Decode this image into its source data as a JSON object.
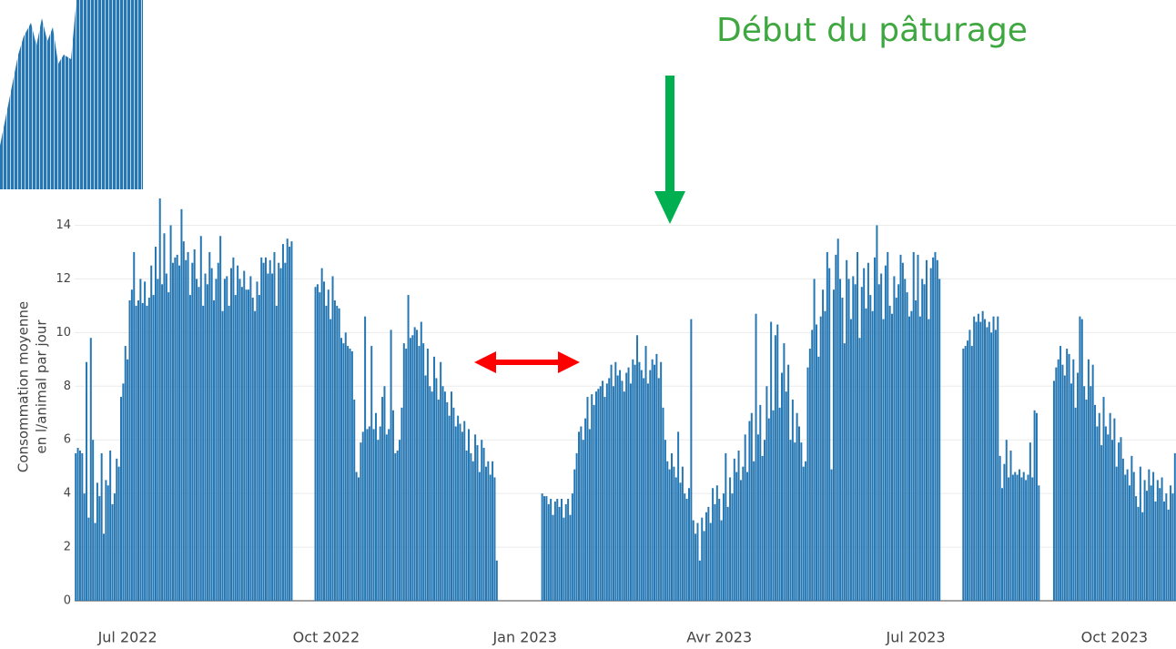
{
  "chart_data": {
    "type": "bar",
    "annotations": [
      "Début du pâturage"
    ],
    "y_label": [
      "Consommation moyenne",
      "en l/animal par jour"
    ],
    "color": "#2577b3",
    "grid": true,
    "xlim": [
      -0.5,
      509.5
    ],
    "xticks": [
      {
        "value": 24,
        "label": "Jul 2022"
      },
      {
        "value": 116,
        "label": "Oct 2022"
      },
      {
        "value": 208,
        "label": "Jan 2023"
      },
      {
        "value": 298,
        "label": "Avr 2023"
      },
      {
        "value": 389,
        "label": "Jul 2023"
      },
      {
        "value": 481,
        "label": "Oct 2023"
      }
    ],
    "ylim": [
      0,
      15
    ],
    "yticks": [
      0,
      2,
      4,
      6,
      8,
      10,
      12,
      14
    ],
    "values": [
      5.5,
      5.7,
      5.6,
      5.5,
      4.0,
      8.9,
      3.1,
      9.8,
      6.0,
      2.9,
      4.4,
      3.9,
      5.5,
      2.5,
      4.5,
      4.3,
      5.6,
      3.6,
      4.0,
      5.3,
      5.0,
      7.6,
      8.1,
      9.5,
      9.0,
      11.2,
      11.6,
      13.0,
      11.0,
      11.2,
      12.0,
      11.1,
      11.9,
      11.0,
      11.3,
      12.5,
      11.4,
      13.2,
      12.0,
      15.0,
      11.8,
      13.7,
      12.2,
      11.5,
      14.0,
      12.6,
      12.8,
      12.9,
      12.5,
      14.6,
      13.4,
      12.7,
      13.0,
      11.4,
      12.6,
      13.1,
      12.0,
      11.7,
      13.6,
      11.0,
      12.2,
      11.8,
      13.0,
      12.4,
      11.2,
      12.0,
      12.6,
      13.6,
      10.8,
      12.0,
      12.1,
      11.0,
      12.4,
      12.8,
      11.4,
      12.5,
      12.0,
      11.7,
      12.3,
      11.6,
      11.6,
      12.1,
      11.3,
      10.8,
      11.9,
      11.4,
      12.8,
      12.6,
      12.8,
      12.2,
      12.7,
      12.2,
      13.0,
      11.0,
      12.6,
      12.4,
      13.3,
      12.6,
      13.5,
      13.2,
      13.4,
      null,
      null,
      null,
      null,
      null,
      null,
      null,
      null,
      null,
      null,
      11.7,
      11.8,
      11.5,
      12.4,
      11.9,
      11.0,
      11.6,
      10.5,
      12.1,
      11.2,
      11.0,
      10.9,
      9.8,
      9.6,
      10.0,
      9.5,
      9.4,
      9.3,
      7.5,
      4.8,
      4.6,
      5.9,
      6.3,
      10.6,
      6.4,
      6.5,
      9.5,
      6.4,
      7.0,
      6.0,
      6.5,
      7.6,
      8.0,
      6.2,
      6.4,
      10.1,
      7.1,
      5.5,
      5.6,
      6.0,
      7.2,
      9.6,
      9.4,
      11.4,
      9.8,
      9.9,
      10.2,
      10.1,
      9.5,
      10.4,
      9.6,
      8.4,
      9.4,
      8.0,
      7.8,
      9.1,
      8.3,
      7.5,
      8.9,
      8.0,
      7.8,
      7.4,
      6.9,
      7.8,
      7.2,
      6.5,
      6.9,
      6.6,
      6.3,
      6.7,
      5.6,
      6.4,
      5.5,
      5.2,
      6.2,
      5.8,
      4.8,
      6.0,
      5.7,
      5.0,
      5.2,
      4.7,
      5.2,
      4.6,
      1.5,
      null,
      null,
      null,
      null,
      null,
      null,
      null,
      null,
      null,
      null,
      null,
      null,
      null,
      null,
      null,
      null,
      null,
      null,
      null,
      null,
      4.0,
      3.9,
      3.9,
      3.6,
      3.8,
      3.2,
      3.7,
      3.8,
      3.5,
      3.8,
      3.1,
      3.6,
      3.8,
      3.2,
      4.0,
      4.9,
      5.5,
      6.3,
      6.5,
      6.0,
      6.8,
      7.6,
      6.4,
      7.7,
      7.3,
      7.8,
      7.9,
      8.0,
      8.2,
      7.6,
      8.1,
      8.3,
      8.8,
      8.0,
      8.9,
      8.4,
      8.6,
      8.2,
      7.8,
      8.5,
      8.7,
      8.1,
      9.0,
      8.8,
      9.9,
      8.9,
      8.6,
      8.3,
      9.5,
      8.1,
      8.6,
      9.0,
      8.8,
      9.2,
      8.3,
      8.9,
      7.2,
      6.0,
      5.2,
      4.9,
      5.5,
      5.0,
      4.6,
      6.3,
      4.4,
      5.0,
      4.0,
      3.8,
      4.2,
      10.5,
      3.0,
      2.5,
      2.9,
      1.5,
      3.1,
      2.6,
      3.3,
      3.5,
      2.9,
      4.2,
      3.6,
      4.3,
      3.8,
      3.0,
      4.0,
      5.5,
      3.5,
      4.6,
      4.0,
      5.3,
      4.8,
      5.6,
      4.5,
      5.0,
      6.2,
      4.8,
      6.7,
      7.0,
      5.2,
      10.7,
      6.2,
      7.3,
      5.4,
      6.0,
      8.0,
      6.8,
      10.4,
      7.1,
      9.9,
      10.3,
      7.2,
      8.5,
      9.6,
      7.8,
      8.8,
      6.0,
      7.5,
      5.9,
      7.0,
      6.5,
      5.9,
      5.0,
      5.2,
      8.7,
      9.4,
      10.1,
      12.0,
      10.3,
      9.1,
      10.6,
      11.6,
      10.8,
      13.0,
      12.4,
      4.9,
      11.6,
      12.9,
      13.5,
      12.0,
      11.3,
      9.6,
      12.7,
      12.0,
      10.5,
      12.1,
      11.8,
      13.0,
      9.8,
      11.7,
      12.4,
      10.9,
      12.6,
      11.4,
      10.8,
      12.8,
      14.0,
      11.8,
      12.2,
      10.5,
      12.5,
      13.0,
      11.0,
      10.7,
      12.1,
      11.3,
      11.8,
      12.9,
      12.6,
      12.0,
      11.5,
      10.6,
      10.8,
      13.0,
      11.2,
      12.9,
      10.6,
      12.0,
      11.8,
      12.7,
      10.5,
      12.4,
      12.8,
      13.0,
      12.7,
      12.0,
      null,
      null,
      null,
      null,
      null,
      null,
      null,
      null,
      null,
      null,
      9.4,
      9.5,
      9.7,
      10.1,
      9.5,
      10.6,
      10.4,
      10.7,
      10.4,
      10.8,
      10.5,
      10.2,
      10.4,
      10.0,
      10.6,
      10.1,
      10.6,
      5.4,
      4.2,
      5.1,
      6.0,
      4.6,
      5.6,
      4.7,
      4.8,
      4.7,
      4.9,
      4.6,
      4.8,
      4.5,
      4.7,
      5.9,
      4.6,
      7.1,
      7.0,
      4.3,
      null,
      null,
      null,
      null,
      null,
      null,
      8.2,
      8.7,
      9.0,
      9.5,
      8.8,
      8.4,
      9.4,
      9.2,
      8.1,
      9.0,
      7.2,
      8.5,
      10.6,
      10.5,
      8.0,
      7.5,
      9.0,
      8.0,
      8.8,
      7.3,
      6.5,
      7.0,
      5.8,
      7.6,
      6.5,
      6.2,
      7.0,
      6.0,
      6.8,
      5.0,
      5.9,
      6.1,
      5.3,
      4.7,
      4.9,
      4.3,
      5.4,
      4.8,
      3.9,
      3.5,
      5.0,
      3.3,
      4.5,
      4.1,
      4.9,
      4.3,
      4.8,
      3.7,
      4.5,
      4.2,
      4.6,
      3.7,
      4.0,
      3.4,
      4.3,
      4.0,
      5.5
    ]
  }
}
